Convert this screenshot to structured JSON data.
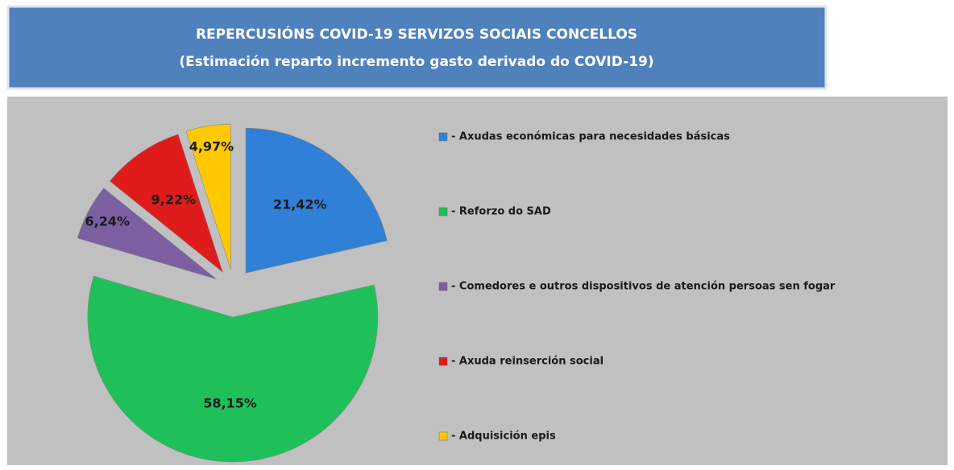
{
  "chart_data": {
    "type": "pie",
    "title": "REPERCUSIÓNS COVID-19 SERVIZOS SOCIAIS CONCELLOS",
    "subtitle": "(Estimación reparto incremento gasto derivado do COVID-19)",
    "categories": [
      "- Axudas económicas para necesidades básicas",
      "- Reforzo do SAD",
      "- Comedores e outros dispositivos  de atención persoas sen fogar",
      "- Axuda reinserción social",
      "- Adquisición  epis"
    ],
    "values": [
      21.42,
      58.15,
      6.24,
      9.22,
      4.97
    ],
    "value_labels": [
      "21,42%",
      "58,15%",
      "6,24%",
      "9,22%",
      "4,97%"
    ],
    "colors": [
      "#2f80d6",
      "#1fc05a",
      "#7b5fa0",
      "#e01b1b",
      "#ffc900"
    ],
    "legend": "right"
  }
}
